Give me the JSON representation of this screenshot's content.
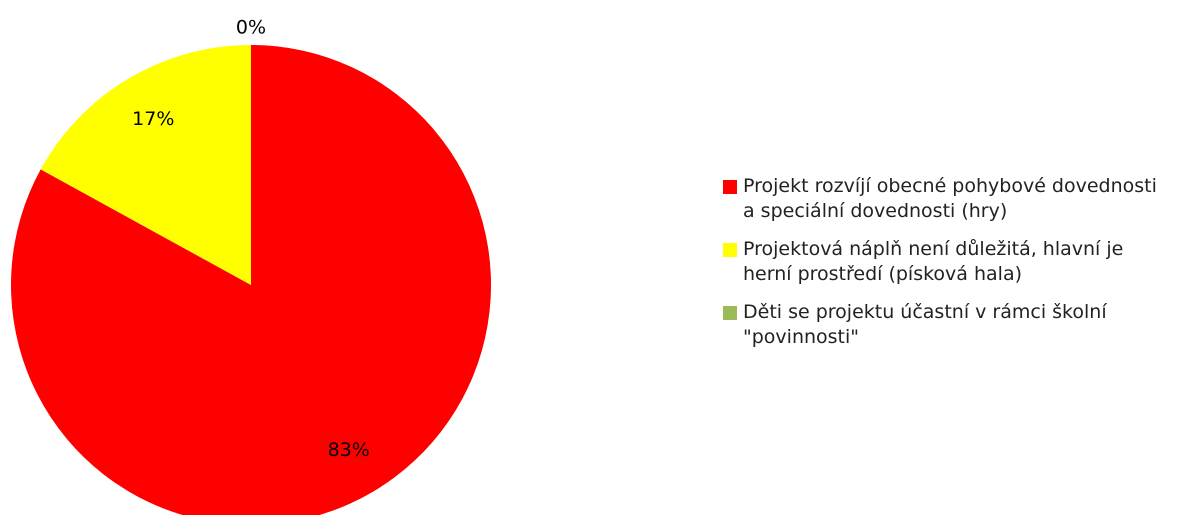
{
  "chart_data": {
    "type": "pie",
    "categories": [
      "Projekt rozvíjí obecné pohybové dovednosti a speciální dovednosti (hry)",
      "Projektová náplň není důležitá, hlavní je herní prostředí (písková hala)",
      "Děti se projektu účastní v rámci školní \"povinnosti\""
    ],
    "values": [
      83,
      17,
      0
    ],
    "value_labels": [
      "83%",
      "17%",
      "0%"
    ],
    "colors": [
      "#ff0000",
      "#ffff00",
      "#9bbb59"
    ],
    "legend": "right"
  }
}
